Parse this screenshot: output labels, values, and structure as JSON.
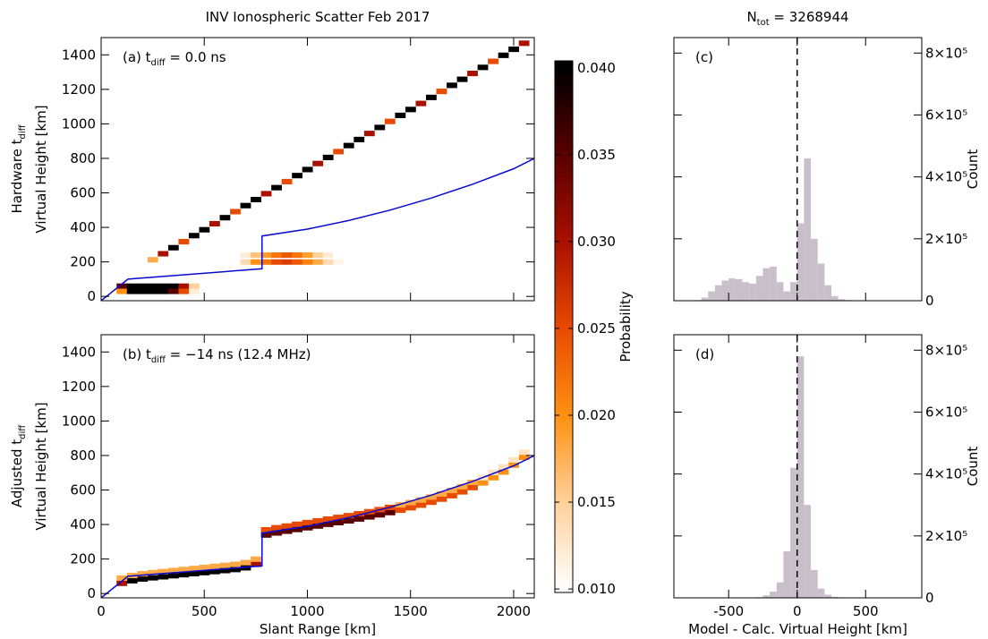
{
  "chart_data": [
    {
      "type": "heatmap",
      "title": "INV Ionospheric Scatter Feb 2017",
      "panel_label": {
        "text": "(a) t",
        "sub": "diff",
        "after": " = 0.0 ns"
      },
      "row_label": {
        "text": "Hardware t",
        "sub": "diff"
      },
      "ylabel": "Virtual Height [km]",
      "xlim": [
        0,
        2100
      ],
      "ylim": [
        -25,
        1500
      ],
      "xticks": [
        0,
        500,
        1000,
        1500,
        2000
      ],
      "yticks": [
        0,
        200,
        400,
        600,
        800,
        1000,
        1200,
        1400
      ],
      "show_xticklabels": false,
      "bin_width": 50,
      "bin_height": 30,
      "series": [
        {
          "x": [
            250,
            300,
            350,
            400,
            450,
            500,
            550,
            600,
            650,
            700,
            750,
            800,
            850,
            900,
            950,
            1000,
            1050,
            1100,
            1150,
            1200,
            1250,
            1300,
            1350,
            1400,
            1450,
            1500,
            1550,
            1600,
            1650,
            1700,
            1750,
            1800,
            1850,
            1900,
            1950,
            2000,
            2050
          ],
          "y": [
            213,
            248,
            283,
            318,
            353,
            387,
            422,
            457,
            492,
            527,
            562,
            596,
            631,
            666,
            701,
            736,
            771,
            806,
            840,
            875,
            910,
            945,
            980,
            1015,
            1050,
            1084,
            1119,
            1154,
            1189,
            1224,
            1259,
            1293,
            1328,
            1363,
            1398,
            1433,
            1468
          ],
          "values": [
            0.018,
            0.03,
            0.04,
            0.025,
            0.04,
            0.04,
            0.03,
            0.04,
            0.025,
            0.04,
            0.04,
            0.03,
            0.04,
            0.025,
            0.04,
            0.04,
            0.03,
            0.04,
            0.025,
            0.04,
            0.04,
            0.03,
            0.04,
            0.025,
            0.04,
            0.04,
            0.03,
            0.04,
            0.025,
            0.04,
            0.04,
            0.03,
            0.04,
            0.025,
            0.04,
            0.04,
            0.03
          ]
        },
        {
          "x": [
            100,
            150,
            200,
            250,
            300,
            350,
            400,
            450,
            100,
            150,
            200,
            250,
            300,
            350,
            400,
            450
          ],
          "y": [
            60,
            60,
            60,
            60,
            60,
            60,
            60,
            60,
            30,
            30,
            30,
            30,
            30,
            30,
            30,
            30
          ],
          "values": [
            0.035,
            0.04,
            0.04,
            0.04,
            0.04,
            0.04,
            0.03,
            0.015,
            0.02,
            0.04,
            0.04,
            0.04,
            0.04,
            0.035,
            0.025,
            0.012
          ]
        },
        {
          "x": [
            700,
            750,
            800,
            850,
            900,
            950,
            1000,
            1050,
            1100,
            1150,
            700,
            750,
            800,
            850,
            900,
            950,
            1000,
            1050,
            1100,
            1150
          ],
          "y": [
            200,
            200,
            200,
            200,
            200,
            200,
            200,
            200,
            200,
            200,
            240,
            240,
            240,
            240,
            240,
            240,
            240,
            240,
            240,
            240
          ],
          "values": [
            0.014,
            0.02,
            0.022,
            0.025,
            0.026,
            0.024,
            0.021,
            0.018,
            0.014,
            0.011,
            0.012,
            0.016,
            0.019,
            0.022,
            0.024,
            0.022,
            0.019,
            0.015,
            0.012,
            0.01
          ]
        }
      ],
      "model": {
        "color": "#0a0ad2",
        "x": [
          0,
          130,
          780,
          780,
          1000,
          1200,
          1400,
          1600,
          1800,
          2000,
          2100
        ],
        "y": [
          -25,
          100,
          160,
          350,
          390,
          440,
          500,
          570,
          650,
          740,
          800
        ]
      }
    },
    {
      "type": "heatmap",
      "panel_label": {
        "text": "(b) t",
        "sub": "diff",
        "after": " = −14 ns (12.4 MHz)"
      },
      "row_label": {
        "text": "Adjusted t",
        "sub": "diff"
      },
      "ylabel": "Virtual Height [km]",
      "xlabel": "Slant Range [km]",
      "xlim": [
        0,
        2100
      ],
      "ylim": [
        -25,
        1500
      ],
      "xticks": [
        0,
        500,
        1000,
        1500,
        2000
      ],
      "yticks": [
        0,
        200,
        400,
        600,
        800,
        1000,
        1200,
        1400
      ],
      "bin_width": 50,
      "bin_height": 30,
      "series": [
        {
          "x": [
            100,
            150,
            200,
            250,
            300,
            350,
            400,
            450,
            500,
            550,
            600,
            650,
            700,
            750,
            800,
            850,
            900,
            950,
            1000,
            1050,
            1100,
            1150,
            1200,
            1250,
            1300,
            1350,
            1400,
            1450,
            1500,
            1550,
            1600,
            1650,
            1700,
            1750,
            1800,
            1850,
            1900,
            1950,
            2000,
            2050
          ],
          "y": [
            60,
            75,
            85,
            92,
            98,
            104,
            110,
            116,
            122,
            128,
            134,
            140,
            150,
            170,
            340,
            352,
            362,
            372,
            382,
            392,
            402,
            412,
            422,
            433,
            445,
            457,
            470,
            484,
            498,
            513,
            530,
            548,
            568,
            590,
            615,
            642,
            672,
            705,
            745,
            790
          ],
          "values": [
            0.03,
            0.04,
            0.04,
            0.04,
            0.04,
            0.04,
            0.04,
            0.04,
            0.04,
            0.04,
            0.04,
            0.04,
            0.04,
            0.03,
            0.035,
            0.035,
            0.035,
            0.035,
            0.035,
            0.035,
            0.035,
            0.035,
            0.035,
            0.035,
            0.035,
            0.035,
            0.035,
            0.025,
            0.025,
            0.025,
            0.025,
            0.025,
            0.025,
            0.025,
            0.025,
            0.02,
            0.02,
            0.02,
            0.02,
            0.02
          ]
        },
        {
          "x": [
            100,
            150,
            200,
            250,
            300,
            350,
            400,
            450,
            500,
            550,
            600,
            650,
            700,
            750,
            800,
            850,
            900,
            950,
            1000,
            1050,
            1100,
            1150,
            1200,
            1250,
            1300,
            1350,
            1400,
            1450,
            1500,
            1550,
            1600,
            1650,
            1700,
            1750,
            1800,
            1850,
            1900,
            1950,
            2000,
            2050
          ],
          "y": [
            90,
            105,
            115,
            122,
            128,
            134,
            140,
            146,
            152,
            158,
            164,
            170,
            180,
            200,
            370,
            382,
            392,
            402,
            412,
            422,
            432,
            442,
            452,
            463,
            475,
            487,
            500,
            514,
            528,
            543,
            560,
            578,
            598,
            620,
            645,
            672,
            702,
            735,
            775,
            820
          ],
          "values": [
            0.018,
            0.018,
            0.018,
            0.018,
            0.018,
            0.018,
            0.018,
            0.018,
            0.018,
            0.018,
            0.018,
            0.018,
            0.018,
            0.018,
            0.025,
            0.025,
            0.025,
            0.025,
            0.025,
            0.025,
            0.025,
            0.025,
            0.025,
            0.025,
            0.025,
            0.025,
            0.025,
            0.018,
            0.018,
            0.018,
            0.018,
            0.018,
            0.018,
            0.018,
            0.018,
            0.013,
            0.013,
            0.013,
            0.013,
            0.013
          ]
        }
      ],
      "model": {
        "color": "#0a0ad2",
        "x": [
          0,
          130,
          780,
          780,
          1000,
          1200,
          1400,
          1600,
          1800,
          2000,
          2100
        ],
        "y": [
          -25,
          100,
          160,
          350,
          390,
          440,
          500,
          570,
          650,
          740,
          800
        ]
      }
    },
    {
      "type": "colorbar",
      "label": "Probability",
      "ylim": [
        0.0098,
        0.0404
      ],
      "yticks": [
        {
          "value": 0.01,
          "label": "0.010"
        },
        {
          "value": 0.015,
          "label": "0.015"
        },
        {
          "value": 0.02,
          "label": "0.020"
        },
        {
          "value": 0.025,
          "label": "0.025"
        },
        {
          "value": 0.03,
          "label": "0.030"
        },
        {
          "value": 0.035,
          "label": "0.035"
        },
        {
          "value": 0.04,
          "label": "0.040"
        }
      ],
      "colormap": {
        "values": [
          0.01,
          0.015,
          0.02,
          0.025,
          0.03,
          0.035,
          0.04
        ],
        "colors": [
          "#ffffff",
          "#ffd09a",
          "#ff9010",
          "#e84a00",
          "#a81000",
          "#5a0000",
          "#000000"
        ]
      }
    },
    {
      "type": "histogram",
      "title": {
        "text": "N",
        "sub": "tot",
        "after": " = 3268944"
      },
      "panel_label": {
        "text": "(c)"
      },
      "ylabel": "Count",
      "xlim": [
        -900,
        910
      ],
      "ylim": [
        0,
        850000
      ],
      "xticks": [
        -500,
        0,
        500
      ],
      "yticks": [
        0,
        {
          "value": 200000,
          "label": "2×10⁵"
        },
        {
          "value": 400000,
          "label": "4×10⁵"
        },
        {
          "value": 600000,
          "label": "6×10⁵"
        },
        {
          "value": 800000,
          "label": "8×10⁵"
        }
      ],
      "show_xticklabels": false,
      "color": "#c9bfca",
      "reference_x": 0,
      "bins": [
        -800,
        -750,
        -700,
        -650,
        -600,
        -550,
        -500,
        -450,
        -400,
        -350,
        -300,
        -250,
        -200,
        -150,
        -100,
        -50,
        0,
        50,
        100,
        150,
        200,
        250,
        300,
        350,
        400,
        450,
        500,
        550,
        600,
        650,
        700,
        750,
        800
      ],
      "values": [
        0,
        2000,
        10000,
        30000,
        50000,
        65000,
        72000,
        70000,
        60000,
        55000,
        80000,
        105000,
        110000,
        60000,
        30000,
        60000,
        250000,
        460000,
        200000,
        120000,
        50000,
        15000,
        5000,
        2000,
        1000,
        0,
        0,
        0,
        0,
        0,
        0,
        0
      ]
    },
    {
      "type": "histogram",
      "panel_label": {
        "text": "(d)"
      },
      "ylabel": "Count",
      "xlabel": "Model - Calc. Virtual Height [km]",
      "xlim": [
        -900,
        910
      ],
      "ylim": [
        0,
        850000
      ],
      "xticks": [
        -500,
        0,
        500
      ],
      "yticks": [
        0,
        {
          "value": 200000,
          "label": "2×10⁵"
        },
        {
          "value": 400000,
          "label": "4×10⁵"
        },
        {
          "value": 600000,
          "label": "6×10⁵"
        },
        {
          "value": 800000,
          "label": "8×10⁵"
        }
      ],
      "color": "#c9bfca",
      "reference_x": 0,
      "bins": [
        -800,
        -750,
        -700,
        -650,
        -600,
        -550,
        -500,
        -450,
        -400,
        -350,
        -300,
        -250,
        -200,
        -150,
        -100,
        -50,
        0,
        50,
        100,
        150,
        200,
        250,
        300,
        350,
        400,
        450,
        500,
        550,
        600,
        650,
        700,
        750,
        800
      ],
      "values": [
        0,
        0,
        0,
        0,
        0,
        0,
        0,
        0,
        0,
        0,
        2000,
        8000,
        20000,
        50000,
        150000,
        420000,
        780000,
        300000,
        90000,
        30000,
        10000,
        3000,
        1000,
        0,
        0,
        0,
        0,
        0,
        0,
        0,
        0,
        0
      ]
    }
  ]
}
